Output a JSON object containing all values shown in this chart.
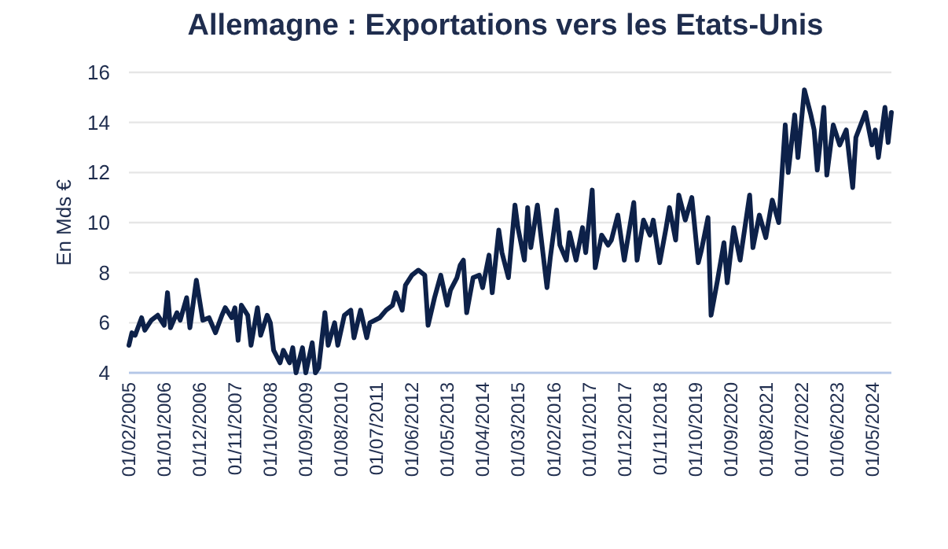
{
  "chart_data": {
    "type": "line",
    "title": "Allemagne : Exportations vers les Etats-Unis",
    "ylabel": "En Mds €",
    "x": [
      "2005-02",
      "2005-03",
      "2005-04",
      "2005-06",
      "2005-07",
      "2005-09",
      "2005-11",
      "2006-01",
      "2006-02",
      "2006-03",
      "2006-05",
      "2006-06",
      "2006-08",
      "2006-09",
      "2006-11",
      "2007-01",
      "2007-03",
      "2007-05",
      "2007-07",
      "2007-08",
      "2007-10",
      "2007-11",
      "2007-12",
      "2008-01",
      "2008-03",
      "2008-04",
      "2008-06",
      "2008-07",
      "2008-09",
      "2008-10",
      "2008-11",
      "2009-01",
      "2009-02",
      "2009-04",
      "2009-05",
      "2009-06",
      "2009-08",
      "2009-09",
      "2009-11",
      "2009-12",
      "2010-01",
      "2010-03",
      "2010-04",
      "2010-06",
      "2010-07",
      "2010-09",
      "2010-11",
      "2010-12",
      "2011-02",
      "2011-04",
      "2011-05",
      "2011-08",
      "2011-10",
      "2011-12",
      "2012-01",
      "2012-03",
      "2012-04",
      "2012-06",
      "2012-08",
      "2012-10",
      "2012-11",
      "2013-01",
      "2013-03",
      "2013-05",
      "2013-06",
      "2013-08",
      "2013-09",
      "2013-10",
      "2013-11",
      "2014-01",
      "2014-03",
      "2014-04",
      "2014-06",
      "2014-07",
      "2014-09",
      "2014-10",
      "2014-12",
      "2015-02",
      "2015-03",
      "2015-05",
      "2015-06",
      "2015-07",
      "2015-09",
      "2015-10",
      "2015-12",
      "2016-01",
      "2016-03",
      "2016-04",
      "2016-06",
      "2016-07",
      "2016-09",
      "2016-11",
      "2016-12",
      "2017-02",
      "2017-03",
      "2017-05",
      "2017-07",
      "2017-08",
      "2017-10",
      "2017-12",
      "2018-03",
      "2018-04",
      "2018-06",
      "2018-08",
      "2018-09",
      "2018-11",
      "2019-01",
      "2019-02",
      "2019-04",
      "2019-05",
      "2019-07",
      "2019-09",
      "2019-11",
      "2019-12",
      "2020-02",
      "2020-03",
      "2020-05",
      "2020-07",
      "2020-08",
      "2020-10",
      "2020-12",
      "2021-03",
      "2021-04",
      "2021-06",
      "2021-08",
      "2021-10",
      "2021-12",
      "2022-02",
      "2022-03",
      "2022-05",
      "2022-06",
      "2022-08",
      "2022-10",
      "2022-11",
      "2022-12",
      "2023-02",
      "2023-03",
      "2023-05",
      "2023-07",
      "2023-09",
      "2023-11",
      "2023-12",
      "2024-03",
      "2024-05",
      "2024-06",
      "2024-07",
      "2024-09",
      "2024-10",
      "2024-11"
    ],
    "series": [
      {
        "color": "#0d2149",
        "values": [
          5.1,
          5.6,
          5.5,
          6.2,
          5.7,
          6.1,
          6.3,
          5.9,
          7.2,
          5.8,
          6.4,
          6.1,
          7.0,
          5.8,
          7.7,
          6.1,
          6.2,
          5.6,
          6.3,
          6.6,
          6.2,
          6.6,
          5.3,
          6.7,
          6.3,
          5.1,
          6.6,
          5.5,
          6.3,
          6.0,
          4.9,
          4.4,
          4.9,
          4.4,
          5.0,
          4.0,
          5.0,
          4.0,
          5.2,
          4.0,
          4.2,
          6.4,
          5.1,
          6.0,
          5.1,
          6.3,
          6.5,
          5.4,
          6.5,
          5.4,
          6.0,
          6.2,
          6.5,
          6.7,
          7.2,
          6.5,
          7.5,
          7.9,
          8.1,
          7.9,
          5.9,
          7.0,
          7.9,
          6.7,
          7.3,
          7.8,
          8.3,
          8.5,
          6.4,
          7.8,
          7.9,
          7.4,
          8.7,
          7.2,
          9.7,
          8.8,
          7.8,
          10.7,
          9.8,
          8.5,
          10.6,
          9.0,
          10.7,
          9.6,
          7.4,
          8.6,
          10.5,
          9.1,
          8.5,
          9.6,
          8.5,
          9.8,
          8.8,
          11.3,
          8.2,
          9.5,
          9.1,
          9.3,
          10.3,
          8.5,
          10.8,
          8.5,
          10.1,
          9.5,
          10.1,
          8.4,
          9.8,
          10.6,
          9.3,
          11.1,
          10.1,
          11.0,
          8.4,
          8.9,
          10.2,
          6.3,
          7.7,
          9.2,
          7.6,
          9.8,
          8.5,
          11.1,
          9.0,
          10.3,
          9.4,
          10.9,
          10.0,
          13.9,
          12.0,
          14.3,
          12.6,
          15.3,
          14.3,
          13.7,
          12.1,
          14.6,
          11.9,
          13.9,
          13.1,
          13.7,
          11.4,
          13.4,
          14.4,
          13.1,
          13.7,
          12.6,
          14.6,
          13.2,
          14.4
        ]
      }
    ],
    "xlim": [
      "2005-02",
      "2024-11"
    ],
    "xticks": [
      {
        "value": "2005-02",
        "label": "01/02/2005"
      },
      {
        "value": "2006-01",
        "label": "01/01/2006"
      },
      {
        "value": "2006-12",
        "label": "01/12/2006"
      },
      {
        "value": "2007-11",
        "label": "01/11/2007"
      },
      {
        "value": "2008-10",
        "label": "01/10/2008"
      },
      {
        "value": "2009-09",
        "label": "01/09/2009"
      },
      {
        "value": "2010-08",
        "label": "01/08/2010"
      },
      {
        "value": "2011-07",
        "label": "01/07/2011"
      },
      {
        "value": "2012-06",
        "label": "01/06/2012"
      },
      {
        "value": "2013-05",
        "label": "01/05/2013"
      },
      {
        "value": "2014-04",
        "label": "01/04/2014"
      },
      {
        "value": "2015-03",
        "label": "01/03/2015"
      },
      {
        "value": "2016-02",
        "label": "01/02/2016"
      },
      {
        "value": "2017-01",
        "label": "01/01/2017"
      },
      {
        "value": "2017-12",
        "label": "01/12/2017"
      },
      {
        "value": "2018-11",
        "label": "01/11/2018"
      },
      {
        "value": "2019-10",
        "label": "01/10/2019"
      },
      {
        "value": "2020-09",
        "label": "01/09/2020"
      },
      {
        "value": "2021-08",
        "label": "01/08/2021"
      },
      {
        "value": "2022-07",
        "label": "01/07/2022"
      },
      {
        "value": "2023-06",
        "label": "01/06/2023"
      },
      {
        "value": "2024-05",
        "label": "01/05/2024"
      }
    ],
    "ylim": [
      4,
      16
    ],
    "yticks": [
      4,
      6,
      8,
      10,
      12,
      14,
      16
    ],
    "grid": "y",
    "line_style": "solid",
    "marker": "none"
  }
}
